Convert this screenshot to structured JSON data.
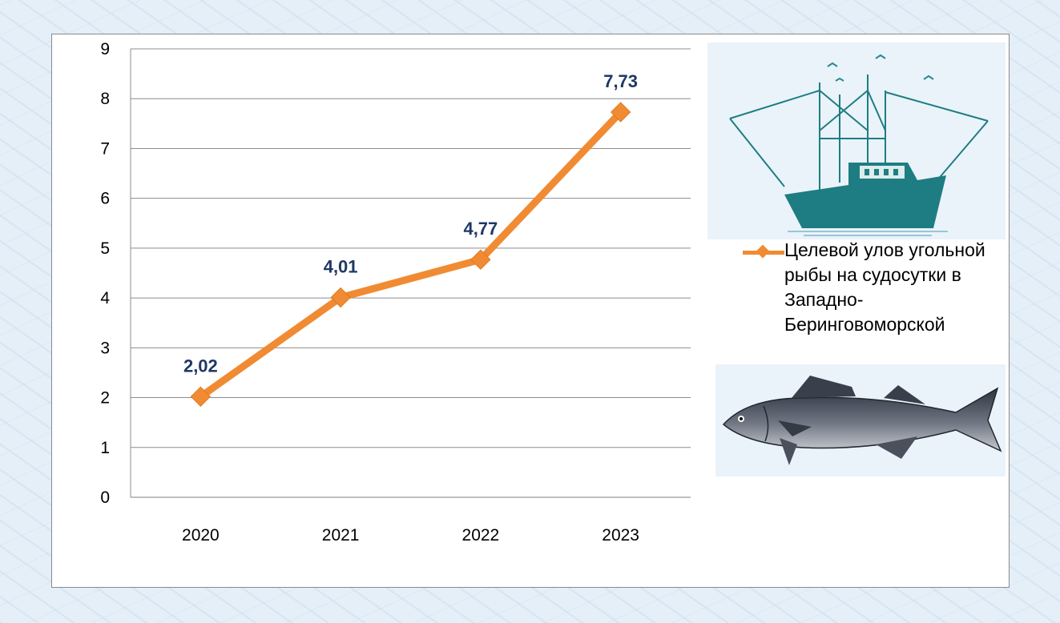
{
  "chart_data": {
    "type": "line",
    "categories": [
      "2020",
      "2021",
      "2022",
      "2023"
    ],
    "series": [
      {
        "name": "Целевой улов угольной рыбы на судосутки в Западно-Беринговоморской",
        "values": [
          2.02,
          4.01,
          4.77,
          7.73
        ],
        "data_labels": [
          "2,02",
          "4,01",
          "4,77",
          "7,73"
        ],
        "color": "#f08b33",
        "marker": "diamond"
      }
    ],
    "ylim": [
      0,
      9
    ],
    "yticks": [
      0,
      1,
      2,
      3,
      4,
      5,
      6,
      7,
      8,
      9
    ],
    "grid": true,
    "legend_position": "right",
    "data_label_color": "#1f3864"
  },
  "legend": {
    "label": "Целевой улов угольной рыбы на судосутки в Западно-Беринговоморской"
  },
  "illustrations": [
    "fishing-trawler-icon",
    "sablefish-icon"
  ]
}
